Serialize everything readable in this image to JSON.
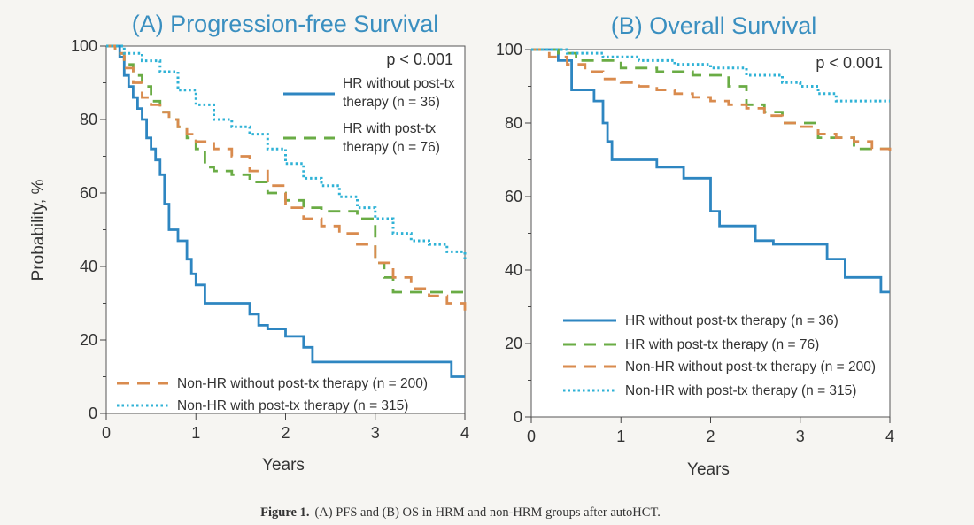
{
  "caption": {
    "label": "Figure 1.",
    "text": "(A) PFS and (B) OS in HRM and non-HRM groups after autoHCT."
  },
  "colors": {
    "hr_without": "#2e86c1",
    "hr_with": "#6aac45",
    "nonhr_without": "#d98b4e",
    "nonhr_with": "#2fb2d6",
    "title": "#3a8fc0"
  },
  "chart_data": [
    {
      "type": "line",
      "subtype": "kaplan-meier step curve",
      "title": "(A) Progression-free Survival",
      "xlabel": "Years",
      "ylabel": "Probability, %",
      "xlim": [
        0,
        4
      ],
      "ylim": [
        0,
        100
      ],
      "xticks": [
        "0",
        "1",
        "2",
        "3",
        "4"
      ],
      "yticks": [
        "0",
        "20",
        "40",
        "60",
        "80",
        "100"
      ],
      "annotation": "p < 0.001",
      "legend_top": [
        "HR without post-tx therapy (n = 36)",
        "HR with post-tx therapy (n = 76)"
      ],
      "legend_bottom": [
        "Non-HR without post-tx therapy (n = 200)",
        "Non-HR with post-tx therapy (n = 315)"
      ],
      "series": [
        {
          "name": "HR without post-tx therapy (n = 36)",
          "style": "solid",
          "x": [
            0,
            0.15,
            0.2,
            0.25,
            0.3,
            0.35,
            0.4,
            0.45,
            0.5,
            0.55,
            0.6,
            0.65,
            0.7,
            0.8,
            0.9,
            0.95,
            1.0,
            1.1,
            1.5,
            1.6,
            1.7,
            1.8,
            2.0,
            2.2,
            2.3,
            2.5,
            3.0,
            3.5,
            3.85,
            4.0
          ],
          "y": [
            100,
            97,
            92,
            89,
            86,
            83,
            80,
            75,
            72,
            69,
            65,
            57,
            50,
            47,
            42,
            38,
            35,
            30,
            30,
            27,
            24,
            23,
            21,
            18,
            14,
            14,
            14,
            14,
            10,
            10
          ]
        },
        {
          "name": "HR with post-tx therapy (n = 76)",
          "style": "dashed",
          "x": [
            0,
            0.1,
            0.2,
            0.3,
            0.4,
            0.5,
            0.6,
            0.7,
            0.8,
            0.9,
            1.0,
            1.1,
            1.2,
            1.4,
            1.6,
            1.8,
            2.0,
            2.2,
            2.4,
            2.6,
            2.8,
            3.0,
            3.1,
            3.2,
            4.0
          ],
          "y": [
            100,
            98,
            95,
            92,
            89,
            85,
            82,
            80,
            78,
            75,
            72,
            67,
            66,
            65,
            63,
            60,
            58,
            56,
            55,
            55,
            53,
            41,
            37,
            33,
            33
          ]
        },
        {
          "name": "Non-HR without post-tx therapy (n = 200)",
          "style": "dashed",
          "x": [
            0,
            0.1,
            0.2,
            0.3,
            0.4,
            0.5,
            0.6,
            0.7,
            0.8,
            0.9,
            1.0,
            1.2,
            1.4,
            1.6,
            1.8,
            2.0,
            2.2,
            2.4,
            2.6,
            2.8,
            3.0,
            3.2,
            3.4,
            3.6,
            3.8,
            4.0
          ],
          "y": [
            100,
            98,
            94,
            90,
            86,
            84,
            82,
            80,
            78,
            76,
            74,
            72,
            70,
            66,
            62,
            56,
            53,
            51,
            49,
            46,
            41,
            37,
            34,
            32,
            30,
            28
          ]
        },
        {
          "name": "Non-HR with post-tx therapy (n = 315)",
          "style": "dotted",
          "x": [
            0,
            0.2,
            0.4,
            0.6,
            0.8,
            1.0,
            1.2,
            1.4,
            1.6,
            1.8,
            2.0,
            2.2,
            2.4,
            2.6,
            2.8,
            3.0,
            3.2,
            3.4,
            3.6,
            3.8,
            4.0
          ],
          "y": [
            100,
            98,
            96,
            93,
            88,
            84,
            80,
            78,
            76,
            72,
            68,
            64,
            62,
            59,
            56,
            53,
            49,
            47,
            46,
            44,
            42
          ]
        }
      ]
    },
    {
      "type": "line",
      "subtype": "kaplan-meier step curve",
      "title": "(B) Overall Survival",
      "xlabel": "Years",
      "ylabel": "",
      "xlim": [
        0,
        4
      ],
      "ylim": [
        0,
        100
      ],
      "xticks": [
        "0",
        "1",
        "2",
        "3",
        "4"
      ],
      "yticks": [
        "0",
        "20",
        "40",
        "60",
        "80",
        "100"
      ],
      "annotation": "p < 0.001",
      "legend": [
        "HR without post-tx therapy (n = 36)",
        "HR with post-tx therapy (n = 76)",
        "Non-HR without post-tx therapy (n = 200)",
        "Non-HR with post-tx therapy (n = 315)"
      ],
      "series": [
        {
          "name": "HR without post-tx therapy (n = 36)",
          "style": "solid",
          "x": [
            0,
            0.3,
            0.45,
            0.7,
            0.8,
            0.85,
            0.9,
            1.2,
            1.4,
            1.7,
            2.0,
            2.1,
            2.5,
            2.7,
            3.3,
            3.5,
            3.9,
            4.0
          ],
          "y": [
            100,
            97,
            89,
            86,
            80,
            75,
            70,
            70,
            68,
            65,
            56,
            52,
            48,
            47,
            43,
            38,
            34,
            34
          ]
        },
        {
          "name": "HR with post-tx therapy (n = 76)",
          "style": "dashed",
          "x": [
            0,
            0.3,
            0.5,
            1.0,
            1.4,
            1.8,
            2.2,
            2.4,
            2.6,
            2.8,
            3.0,
            3.2,
            3.6,
            4.0
          ],
          "y": [
            100,
            99,
            97,
            95,
            94,
            93,
            90,
            85,
            83,
            80,
            80,
            76,
            73,
            73
          ]
        },
        {
          "name": "Non-HR without post-tx therapy (n = 200)",
          "style": "dashed",
          "x": [
            0,
            0.2,
            0.4,
            0.6,
            0.8,
            1.0,
            1.2,
            1.4,
            1.6,
            1.8,
            2.0,
            2.2,
            2.4,
            2.6,
            2.8,
            3.0,
            3.2,
            3.4,
            3.6,
            3.8,
            4.0
          ],
          "y": [
            100,
            98,
            96,
            94,
            92,
            91,
            90,
            89,
            88,
            87,
            86,
            85,
            84,
            82,
            80,
            79,
            77,
            76,
            75,
            73,
            72
          ]
        },
        {
          "name": "Non-HR with post-tx therapy (n = 315)",
          "style": "dotted",
          "x": [
            0,
            0.4,
            0.8,
            1.2,
            1.6,
            2.0,
            2.4,
            2.8,
            3.0,
            3.2,
            3.4,
            4.0
          ],
          "y": [
            100,
            99,
            98,
            97,
            96,
            95,
            93,
            91,
            90,
            88,
            86,
            86
          ]
        }
      ]
    }
  ]
}
